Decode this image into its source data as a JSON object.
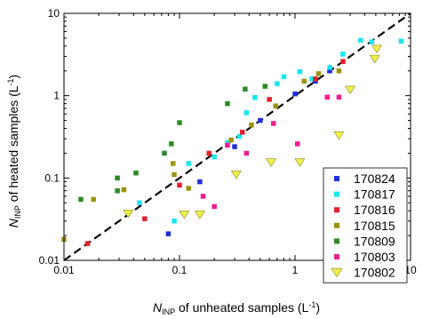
{
  "chart_data": {
    "type": "scatter",
    "x_scale": "log",
    "y_scale": "log",
    "xlim": [
      0.01,
      10
    ],
    "ylim": [
      0.01,
      10
    ],
    "x_ticks": [
      {
        "value": 0.01,
        "label": "0.01"
      },
      {
        "value": 0.1,
        "label": "0.1"
      },
      {
        "value": 1,
        "label": "1"
      },
      {
        "value": 10,
        "label": "10"
      }
    ],
    "y_ticks": [
      {
        "value": 0.01,
        "label": "0.01"
      },
      {
        "value": 0.1,
        "label": "0.1"
      },
      {
        "value": 1,
        "label": "1"
      },
      {
        "value": 10,
        "label": "10"
      }
    ],
    "xlabel": {
      "main": "N",
      "sub": "INP",
      "rest": " of unheated samples (L",
      "sup": "-1",
      "end": ")"
    },
    "ylabel": {
      "main": "N",
      "sub": "INP",
      "rest": " of heated samples (L",
      "sup": "-1",
      "end": ")"
    },
    "grid": false,
    "legend_position": "bottom-right",
    "reference_line": {
      "style": "dashed",
      "color": "#000000",
      "from": [
        0.01,
        0.01
      ],
      "to": [
        10,
        10
      ]
    },
    "series": [
      {
        "name": "170824",
        "color": "#1f2fd6",
        "marker": "square",
        "points": [
          [
            0.08,
            0.021
          ],
          [
            0.15,
            0.09
          ],
          [
            0.3,
            0.24
          ],
          [
            0.5,
            0.5
          ],
          [
            1.0,
            1.05
          ],
          [
            1.5,
            1.5
          ],
          [
            2.0,
            2.0
          ]
        ]
      },
      {
        "name": "170817",
        "color": "#19e6ef",
        "marker": "square",
        "points": [
          [
            0.045,
            0.05
          ],
          [
            0.09,
            0.03
          ],
          [
            0.12,
            0.15
          ],
          [
            0.2,
            0.18
          ],
          [
            0.26,
            0.27
          ],
          [
            0.33,
            0.32
          ],
          [
            0.38,
            0.62
          ],
          [
            0.45,
            0.95
          ],
          [
            0.7,
            1.4
          ],
          [
            0.8,
            1.7
          ],
          [
            1.1,
            1.95
          ],
          [
            1.4,
            1.6
          ],
          [
            2.0,
            2.2
          ],
          [
            2.6,
            3.2
          ],
          [
            3.7,
            4.7
          ],
          [
            4.6,
            4.5
          ],
          [
            8.3,
            4.6
          ]
        ]
      },
      {
        "name": "170816",
        "color": "#e0202f",
        "marker": "square",
        "points": [
          [
            0.016,
            0.016
          ],
          [
            0.05,
            0.032
          ],
          [
            0.1,
            0.082
          ],
          [
            0.18,
            0.2
          ],
          [
            0.35,
            0.36
          ],
          [
            0.6,
            0.9
          ],
          [
            1.5,
            1.6
          ],
          [
            2.6,
            2.6
          ]
        ]
      },
      {
        "name": "170815",
        "color": "#9c9312",
        "marker": "square",
        "points": [
          [
            0.01,
            0.018
          ],
          [
            0.018,
            0.055
          ],
          [
            0.033,
            0.072
          ],
          [
            0.088,
            0.15
          ],
          [
            0.09,
            0.11
          ],
          [
            0.12,
            0.075
          ],
          [
            0.28,
            0.29
          ],
          [
            0.42,
            0.44
          ],
          [
            0.68,
            0.75
          ],
          [
            1.2,
            1.5
          ],
          [
            1.6,
            1.85
          ],
          [
            2.4,
            2.0
          ]
        ]
      },
      {
        "name": "170809",
        "color": "#2c8a26",
        "marker": "square",
        "points": [
          [
            0.014,
            0.055
          ],
          [
            0.029,
            0.1
          ],
          [
            0.029,
            0.07
          ],
          [
            0.042,
            0.115
          ],
          [
            0.074,
            0.2
          ],
          [
            0.085,
            0.26
          ],
          [
            0.1,
            0.47
          ],
          [
            0.26,
            0.8
          ],
          [
            0.37,
            1.2
          ],
          [
            0.55,
            1.3
          ]
        ]
      },
      {
        "name": "170803",
        "color": "#ee1e8f",
        "marker": "square",
        "points": [
          [
            0.16,
            0.06
          ],
          [
            0.2,
            0.045
          ],
          [
            0.26,
            0.25
          ],
          [
            0.38,
            0.2
          ],
          [
            0.65,
            0.46
          ],
          [
            1.05,
            0.26
          ],
          [
            1.9,
            0.96
          ],
          [
            2.4,
            0.96
          ]
        ]
      },
      {
        "name": "170802",
        "color": "#f0f04c",
        "marker": "triangle-down",
        "points": [
          [
            0.036,
            0.037
          ],
          [
            0.11,
            0.036
          ],
          [
            0.15,
            0.036
          ],
          [
            0.31,
            0.11
          ],
          [
            0.62,
            0.155
          ],
          [
            1.1,
            0.155
          ],
          [
            2.4,
            0.33
          ],
          [
            3.0,
            1.18
          ],
          [
            4.9,
            2.8
          ],
          [
            5.1,
            3.7
          ]
        ]
      }
    ]
  }
}
